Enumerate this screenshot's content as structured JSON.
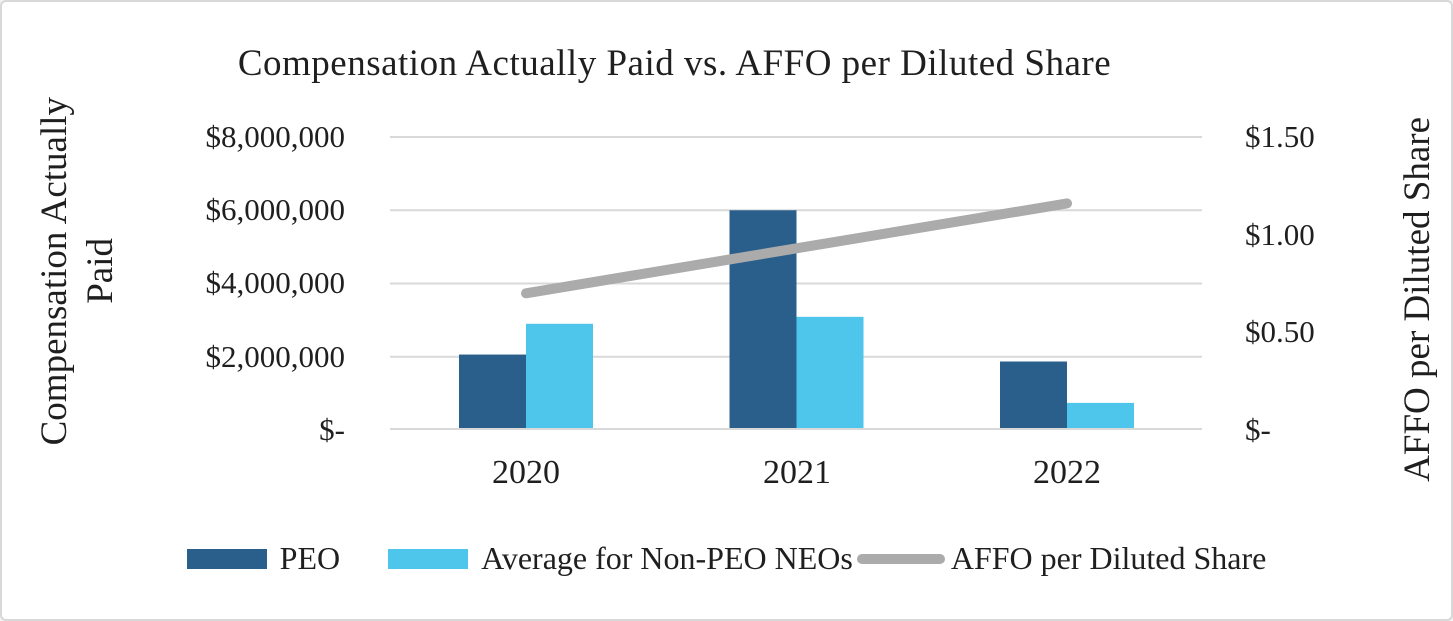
{
  "title": "Compensation Actually Paid vs. AFFO per Diluted Share",
  "left_axis": {
    "title_line1": "Compensation Actually",
    "title_line2": "Paid",
    "ticks": [
      "$8,000,000",
      "$6,000,000",
      "$4,000,000",
      "$2,000,000",
      "$-"
    ]
  },
  "right_axis": {
    "title": "AFFO per Diluted Share",
    "ticks": [
      "$1.50",
      "$1.00",
      "$0.50",
      "$-"
    ]
  },
  "x_axis": {
    "categories": [
      "2020",
      "2021",
      "2022"
    ]
  },
  "legend": {
    "items": [
      {
        "label": "PEO",
        "color": "#2A5F8C",
        "type": "bar"
      },
      {
        "label": "Average for Non-PEO NEOs",
        "color": "#4EC5EB",
        "type": "bar"
      },
      {
        "label": "AFFO per Diluted Share",
        "color": "#ABABAB",
        "type": "line"
      }
    ]
  },
  "colors": {
    "peo_bar": "#2A5F8C",
    "non_peo_bar": "#4EC5EB",
    "affo_line": "#ABABAB",
    "gridline": "#D9D9D9",
    "text": "#1F1F1F"
  },
  "chart_data": {
    "type": "bar",
    "subtype": "combo-bar-line-dual-axis",
    "title": "Compensation Actually Paid vs. AFFO per Diluted Share",
    "categories": [
      "2020",
      "2021",
      "2022"
    ],
    "series": [
      {
        "name": "PEO",
        "type": "bar",
        "axis": "left",
        "color": "#2A5F8C",
        "values": [
          2060000,
          6000000,
          1870000
        ]
      },
      {
        "name": "Average for Non-PEO NEOs",
        "type": "bar",
        "axis": "left",
        "color": "#4EC5EB",
        "values": [
          2900000,
          3090000,
          740000
        ]
      },
      {
        "name": "AFFO per Diluted Share",
        "type": "line",
        "axis": "right",
        "color": "#ABABAB",
        "values": [
          0.7,
          0.93,
          1.16
        ]
      }
    ],
    "left_axis_label": "Compensation Actually Paid",
    "right_axis_label": "AFFO per Diluted Share",
    "left_ylim": [
      0,
      8000000
    ],
    "right_ylim": [
      0,
      1.5
    ],
    "left_tick_step": 2000000,
    "right_tick_step": 0.5,
    "grid": true,
    "legend_position": "bottom"
  }
}
